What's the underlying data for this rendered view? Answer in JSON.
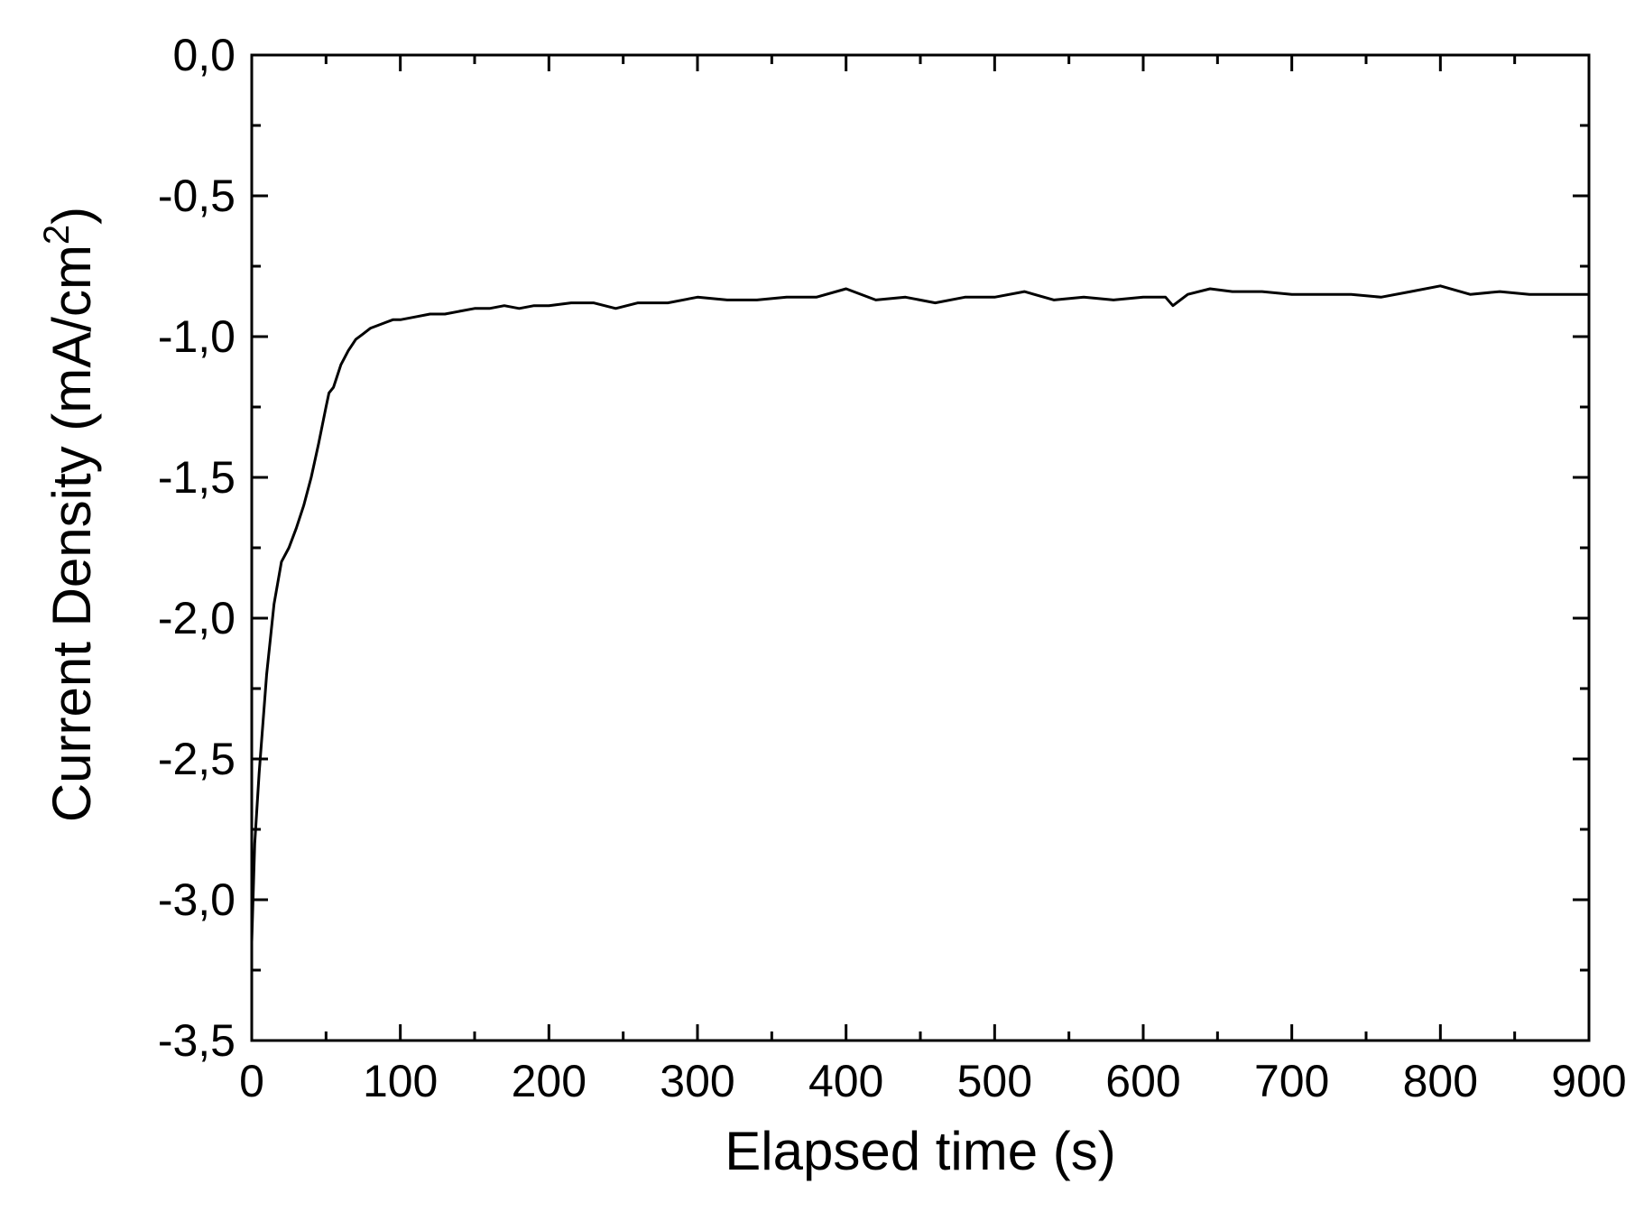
{
  "chart_data": {
    "type": "line",
    "xlabel": "Elapsed time (s)",
    "ylabel": {
      "text": "Current Density (mA/cm",
      "superscript": "2",
      "closing": ")"
    },
    "xlim": [
      0,
      900
    ],
    "ylim": [
      -3.5,
      0.0
    ],
    "x_ticks": [
      0,
      100,
      200,
      300,
      400,
      500,
      600,
      700,
      800,
      900
    ],
    "x_tick_labels": [
      "0",
      "100",
      "200",
      "300",
      "400",
      "500",
      "600",
      "700",
      "800",
      "900"
    ],
    "y_ticks": [
      0.0,
      -0.5,
      -1.0,
      -1.5,
      -2.0,
      -2.5,
      -3.0,
      -3.5
    ],
    "y_tick_labels": [
      "0,0",
      "-0,5",
      "-1,0",
      "-1,5",
      "-2,0",
      "-2,5",
      "-3,0",
      "-3,5"
    ],
    "minor_ticks": true,
    "grid": false,
    "line_color": "#000000",
    "series": [
      {
        "x": [
          0,
          2,
          5,
          10,
          15,
          20,
          25,
          30,
          35,
          40,
          45,
          50,
          52,
          55,
          60,
          65,
          70,
          75,
          80,
          85,
          90,
          95,
          100,
          110,
          120,
          130,
          140,
          150,
          160,
          170,
          180,
          190,
          200,
          215,
          230,
          245,
          260,
          280,
          300,
          320,
          340,
          360,
          380,
          400,
          420,
          440,
          460,
          480,
          500,
          520,
          540,
          560,
          580,
          600,
          615,
          620,
          630,
          645,
          660,
          680,
          700,
          720,
          740,
          760,
          780,
          800,
          820,
          840,
          860,
          880,
          900
        ],
        "y": [
          -3.15,
          -2.8,
          -2.55,
          -2.2,
          -1.95,
          -1.8,
          -1.75,
          -1.68,
          -1.6,
          -1.5,
          -1.38,
          -1.25,
          -1.2,
          -1.18,
          -1.1,
          -1.05,
          -1.01,
          -0.99,
          -0.97,
          -0.96,
          -0.95,
          -0.94,
          -0.94,
          -0.93,
          -0.92,
          -0.92,
          -0.91,
          -0.9,
          -0.9,
          -0.89,
          -0.9,
          -0.89,
          -0.89,
          -0.88,
          -0.88,
          -0.9,
          -0.88,
          -0.88,
          -0.86,
          -0.87,
          -0.87,
          -0.86,
          -0.86,
          -0.83,
          -0.87,
          -0.86,
          -0.88,
          -0.86,
          -0.86,
          -0.84,
          -0.87,
          -0.86,
          -0.87,
          -0.86,
          -0.86,
          -0.89,
          -0.85,
          -0.83,
          -0.84,
          -0.84,
          -0.85,
          -0.85,
          -0.85,
          -0.86,
          -0.84,
          -0.82,
          -0.85,
          -0.84,
          -0.85,
          -0.85,
          -0.85
        ]
      }
    ]
  }
}
